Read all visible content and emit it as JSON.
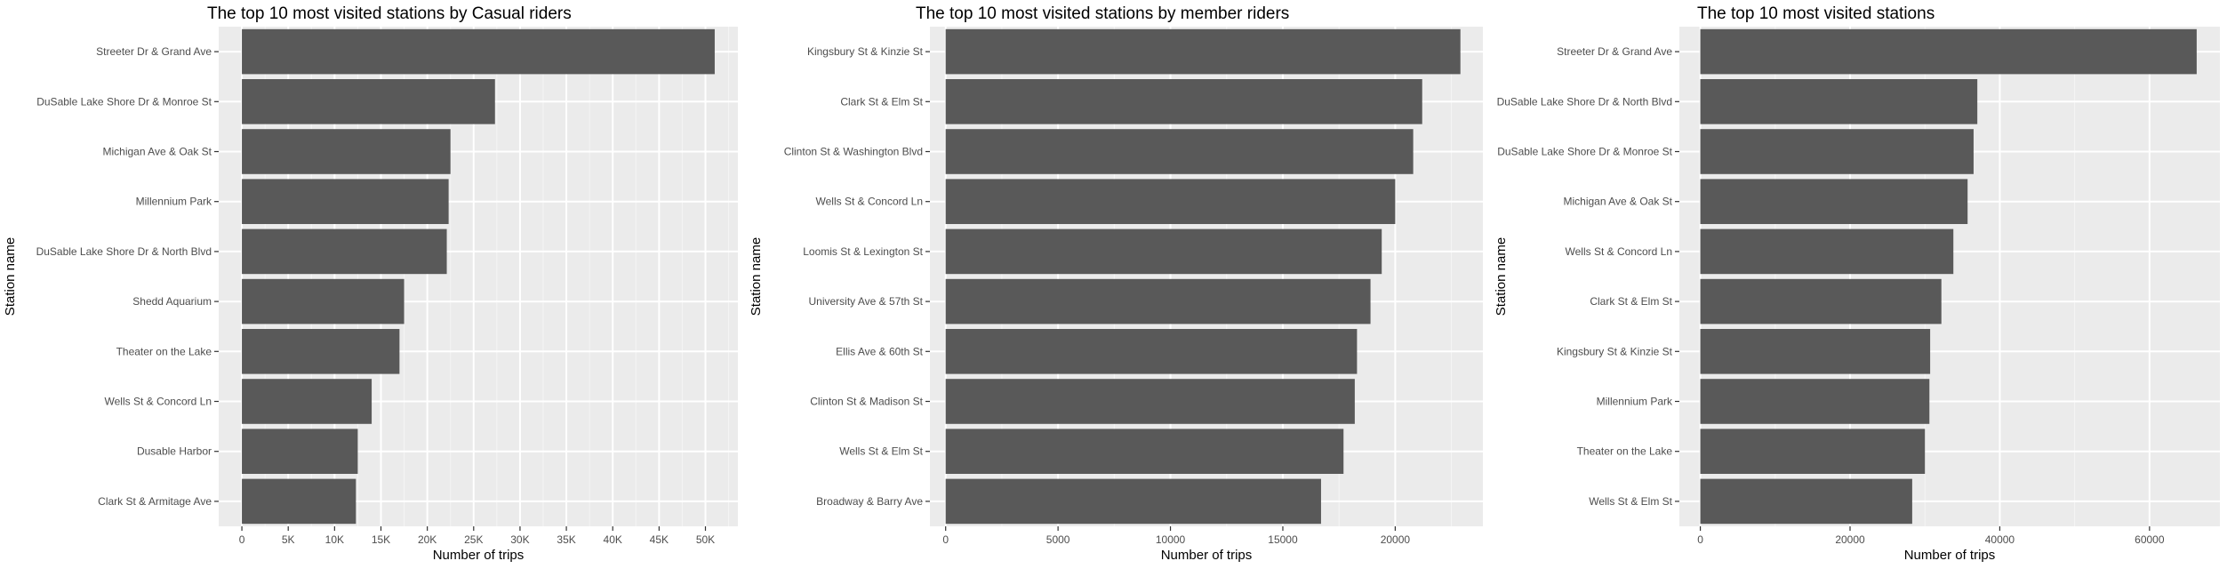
{
  "chart_data": [
    {
      "type": "bar",
      "orientation": "horizontal",
      "title": "The top 10 most visited stations by Casual riders",
      "xlabel": "Number of trips",
      "ylabel": "Station name",
      "categories": [
        "Streeter Dr & Grand Ave",
        "DuSable Lake Shore Dr & Monroe St",
        "Michigan Ave & Oak St",
        "Millennium Park",
        "DuSable Lake Shore Dr & North Blvd",
        "Shedd Aquarium",
        "Theater on the Lake",
        "Wells St & Concord Ln",
        "Dusable Harbor",
        "Clark St & Armitage Ave"
      ],
      "values": [
        51000,
        27300,
        22500,
        22300,
        22100,
        17500,
        17000,
        14000,
        12500,
        12300
      ],
      "xlim": [
        -2500,
        53500
      ],
      "xticks": [
        0,
        5000,
        10000,
        15000,
        20000,
        25000,
        30000,
        35000,
        40000,
        45000,
        50000
      ],
      "xtick_labels": [
        "0",
        "5K",
        "10K",
        "15K",
        "20K",
        "25K",
        "30K",
        "35K",
        "40K",
        "45K",
        "50K"
      ],
      "bar_color": "#595959",
      "panel_color": "#ebebeb",
      "grid": true,
      "legend": "none"
    },
    {
      "type": "bar",
      "orientation": "horizontal",
      "title": "The top 10 most visited stations by member riders",
      "xlabel": "Number of trips",
      "ylabel": "Station name",
      "categories": [
        "Kingsbury St & Kinzie St",
        "Clark St & Elm St",
        "Clinton St & Washington Blvd",
        "Wells St & Concord Ln",
        "Loomis St & Lexington St",
        "University Ave & 57th St",
        "Ellis Ave & 60th St",
        "Clinton St & Madison St",
        "Wells St & Elm St",
        "Broadway & Barry Ave"
      ],
      "values": [
        22900,
        21200,
        20800,
        20000,
        19400,
        18900,
        18300,
        18200,
        17700,
        16700
      ],
      "xlim": [
        -700,
        23900
      ],
      "xticks": [
        0,
        5000,
        10000,
        15000,
        20000
      ],
      "xtick_labels": [
        "0",
        "5000",
        "10000",
        "15000",
        "20000"
      ],
      "bar_color": "#595959",
      "panel_color": "#ebebeb",
      "grid": true,
      "legend": "none"
    },
    {
      "type": "bar",
      "orientation": "horizontal",
      "title": "The top 10 most visited stations",
      "xlabel": "Number of trips",
      "ylabel": "Station name",
      "categories": [
        "Streeter Dr & Grand Ave",
        "DuSable Lake Shore Dr & North Blvd",
        "DuSable Lake Shore Dr & Monroe St",
        "Michigan Ave & Oak St",
        "Wells St & Concord Ln",
        "Clark St & Elm St",
        "Kingsbury St & Kinzie St",
        "Millennium Park",
        "Theater on the Lake",
        "Wells St & Elm St"
      ],
      "values": [
        66300,
        37000,
        36500,
        35700,
        33800,
        32200,
        30700,
        30600,
        30000,
        28300
      ],
      "xlim": [
        -2800,
        69400
      ],
      "xticks": [
        0,
        20000,
        40000,
        60000
      ],
      "xtick_labels": [
        "0",
        "20000",
        "40000",
        "60000"
      ],
      "bar_color": "#595959",
      "panel_color": "#ebebeb",
      "grid": true,
      "legend": "none"
    }
  ]
}
